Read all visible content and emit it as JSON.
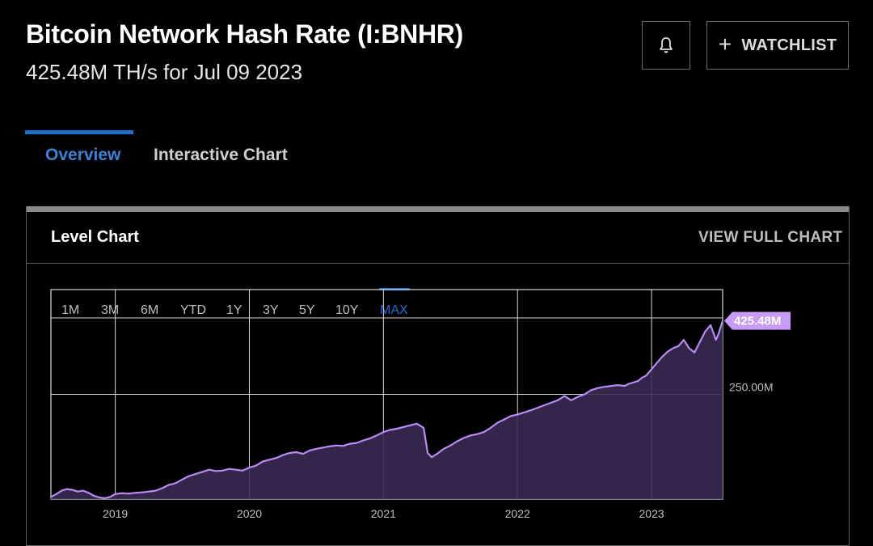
{
  "header": {
    "title": "Bitcoin Network Hash Rate (I:BNHR)",
    "subtitle": "425.48M TH/s for Jul 09 2023",
    "bell_icon": "bell-icon",
    "watchlist_plus": "+",
    "watchlist_label": "WATCHLIST"
  },
  "tabs": [
    {
      "label": "Overview",
      "active": true
    },
    {
      "label": "Interactive Chart",
      "active": false
    }
  ],
  "card": {
    "title": "Level Chart",
    "view_full": "VIEW FULL CHART"
  },
  "ranges": [
    {
      "label": "1M",
      "active": false
    },
    {
      "label": "3M",
      "active": false
    },
    {
      "label": "6M",
      "active": false
    },
    {
      "label": "YTD",
      "active": false
    },
    {
      "label": "1Y",
      "active": false
    },
    {
      "label": "3Y",
      "active": false
    },
    {
      "label": "5Y",
      "active": false
    },
    {
      "label": "10Y",
      "active": false
    },
    {
      "label": "MAX",
      "active": true
    }
  ],
  "colors": {
    "accent": "#1f6fd1",
    "line": "#b98cf5",
    "fill": "#3a2a52",
    "badge": "#c89bf7"
  },
  "chart_data": {
    "type": "area",
    "ylabel": "",
    "y_tick_labels": [
      "250.00M"
    ],
    "x_tick_labels": [
      "2019",
      "2020",
      "2021",
      "2022",
      "2023"
    ],
    "last_value_label": "425.48M",
    "xlim": [
      2018.52,
      2023.53
    ],
    "ylim": [
      0,
      500
    ],
    "grid": true,
    "series": [
      {
        "x": [
          2018.52,
          2018.56,
          2018.6,
          2018.64,
          2018.68,
          2018.72,
          2018.76,
          2018.8,
          2018.84,
          2018.88,
          2018.92,
          2018.96,
          2019.0,
          2019.05,
          2019.1,
          2019.15,
          2019.2,
          2019.25,
          2019.3,
          2019.35,
          2019.4,
          2019.45,
          2019.5,
          2019.55,
          2019.6,
          2019.65,
          2019.7,
          2019.75,
          2019.8,
          2019.85,
          2019.9,
          2019.95,
          2020.0,
          2020.05,
          2020.1,
          2020.15,
          2020.2,
          2020.25,
          2020.3,
          2020.35,
          2020.4,
          2020.45,
          2020.5,
          2020.55,
          2020.6,
          2020.65,
          2020.7,
          2020.75,
          2020.8,
          2020.85,
          2020.9,
          2020.95,
          2021.0,
          2021.05,
          2021.1,
          2021.15,
          2021.2,
          2021.25,
          2021.3,
          2021.33,
          2021.36,
          2021.4,
          2021.45,
          2021.5,
          2021.55,
          2021.6,
          2021.65,
          2021.7,
          2021.75,
          2021.8,
          2021.85,
          2021.9,
          2021.95,
          2022.0,
          2022.05,
          2022.1,
          2022.15,
          2022.2,
          2022.25,
          2022.3,
          2022.35,
          2022.4,
          2022.45,
          2022.5,
          2022.55,
          2022.6,
          2022.65,
          2022.7,
          2022.75,
          2022.8,
          2022.83,
          2022.86,
          2022.9,
          2022.93,
          2022.96,
          2023.0,
          2023.04,
          2023.08,
          2023.12,
          2023.16,
          2023.2,
          2023.24,
          2023.28,
          2023.32,
          2023.36,
          2023.4,
          2023.44,
          2023.48,
          2023.5,
          2023.53
        ],
        "y": [
          5,
          12,
          20,
          24,
          22,
          18,
          20,
          15,
          8,
          4,
          2,
          5,
          12,
          14,
          13,
          15,
          16,
          18,
          20,
          26,
          34,
          38,
          47,
          55,
          60,
          65,
          70,
          67,
          68,
          72,
          70,
          68,
          75,
          80,
          90,
          94,
          98,
          105,
          110,
          112,
          108,
          116,
          120,
          123,
          126,
          128,
          127,
          132,
          134,
          140,
          145,
          152,
          160,
          165,
          168,
          172,
          176,
          180,
          170,
          110,
          100,
          108,
          120,
          128,
          138,
          146,
          152,
          155,
          160,
          170,
          182,
          190,
          198,
          202,
          207,
          212,
          218,
          224,
          230,
          236,
          246,
          236,
          244,
          250,
          260,
          265,
          268,
          270,
          272,
          270,
          275,
          278,
          282,
          290,
          295,
          310,
          325,
          340,
          352,
          360,
          365,
          380,
          360,
          350,
          375,
          400,
          415,
          380,
          395,
          425.48
        ]
      }
    ]
  }
}
